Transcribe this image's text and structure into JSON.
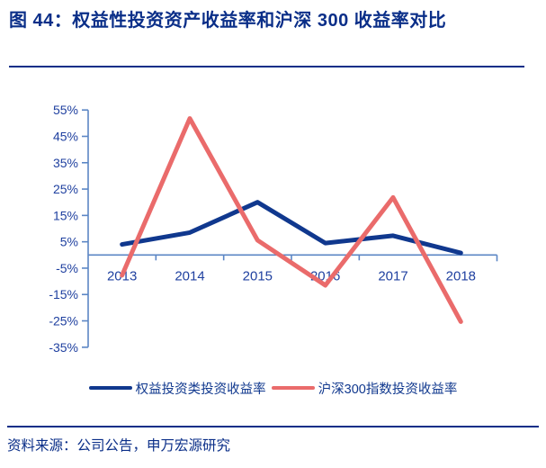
{
  "page": {
    "title": "图 44：权益性投资资产收益率和沪深 300 收益率对比",
    "source_label": "资料来源：公司公告，申万宏源研究"
  },
  "colors": {
    "title_navy": "#0A2E88",
    "tick_label_blue": "#2041A0",
    "axis_blue": "#5B86C5",
    "legend_text_blue": "#10388E"
  },
  "chart_data": {
    "type": "line",
    "title": "图 44：权益性投资资产收益率和沪深 300 收益率对比",
    "categories": [
      "2013",
      "2014",
      "2015",
      "2016",
      "2017",
      "2018"
    ],
    "series": [
      {
        "name": "权益投资类投资收益率",
        "color": "#10388E",
        "values": [
          4,
          8.5,
          20,
          4.5,
          7.3,
          0.8
        ]
      },
      {
        "name": "沪深300指数投资收益率",
        "color": "#EA6B6B",
        "values": [
          -7.7,
          51.8,
          5.6,
          -11.5,
          21.8,
          -25.3
        ]
      }
    ],
    "ylim": [
      -35,
      55
    ],
    "ytick_step": 10,
    "ytick_labels": [
      "55%",
      "45%",
      "35%",
      "25%",
      "15%",
      "5%",
      "-5%",
      "-15%",
      "-25%",
      "-35%"
    ],
    "unit": "percent",
    "grid": false,
    "legend_position": "bottom",
    "xlabel": "",
    "ylabel": "",
    "source": "资料来源：公司公告，申万宏源研究"
  }
}
